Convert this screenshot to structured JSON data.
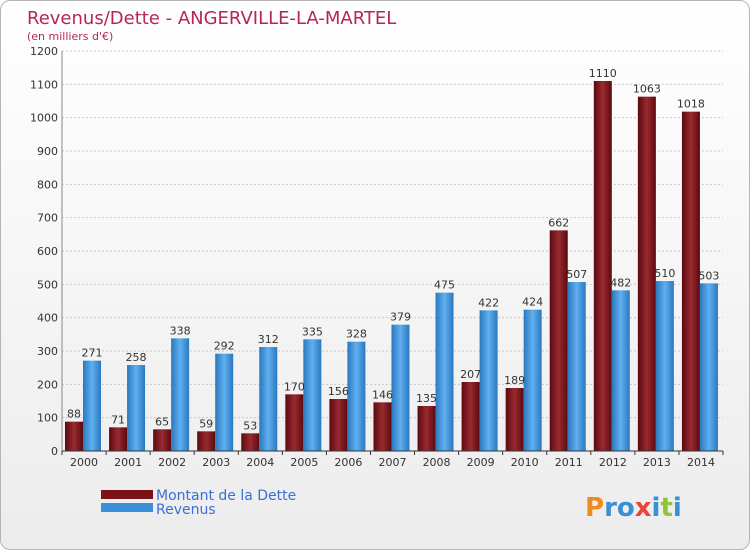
{
  "chart_data": {
    "type": "bar",
    "title": "Revenus/Dette - ANGERVILLE-LA-MARTEL",
    "subtitle": "(en milliers d'€)",
    "categories": [
      "2000",
      "2001",
      "2002",
      "2003",
      "2004",
      "2005",
      "2006",
      "2007",
      "2008",
      "2009",
      "2010",
      "2011",
      "2012",
      "2013",
      "2014"
    ],
    "series": [
      {
        "name": "Montant de la Dette",
        "color": "#7a1218",
        "values": [
          88,
          71,
          65,
          59,
          53,
          170,
          156,
          146,
          135,
          207,
          189,
          662,
          1110,
          1063,
          1018
        ]
      },
      {
        "name": "Revenus",
        "color": "#3a8fd8",
        "values": [
          271,
          258,
          338,
          292,
          312,
          335,
          328,
          379,
          475,
          422,
          424,
          507,
          482,
          510,
          503
        ]
      }
    ],
    "ylim": [
      0,
      1200
    ],
    "yticks": [
      0,
      100,
      200,
      300,
      400,
      500,
      600,
      700,
      800,
      900,
      1000,
      1100,
      1200
    ],
    "grid": true,
    "legend_position": "bottom-left"
  },
  "logo": {
    "text": "Proxiti",
    "colors": [
      "#f08a1c",
      "#3a8fd8",
      "#3a8fd8",
      "#e8453c",
      "#3a8fd8",
      "#8fc43b",
      "#3a8fd8"
    ]
  }
}
